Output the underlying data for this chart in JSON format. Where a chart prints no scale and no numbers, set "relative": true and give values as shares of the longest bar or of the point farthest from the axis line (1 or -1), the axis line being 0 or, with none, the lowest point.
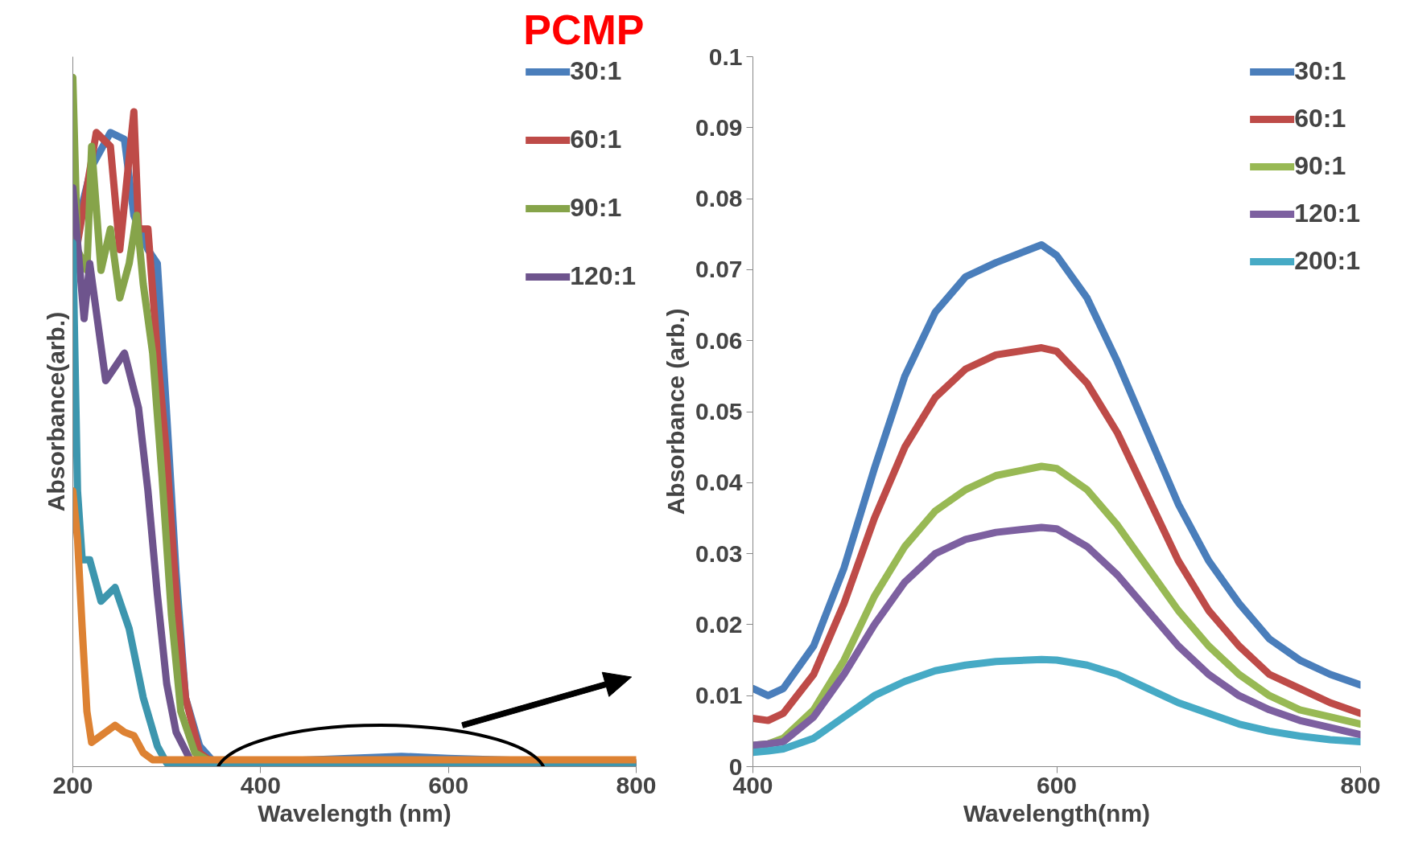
{
  "chart_data": [
    {
      "type": "line",
      "title": "PCMP",
      "xlabel": "Wavelength (nm)",
      "ylabel": "Absorbance(arb.)",
      "relative": true,
      "xlim": [
        200,
        800
      ],
      "xticks": [
        200,
        400,
        600,
        800
      ],
      "tick_labels": "x",
      "legend": "top right",
      "grid": false,
      "line_style": "solid",
      "marker": "none",
      "series": [
        {
          "name": "30:1",
          "color": "#4a7ebb",
          "x": [
            200,
            220,
            240,
            255,
            265,
            280,
            290,
            300,
            310,
            320,
            335,
            350,
            400,
            550,
            600,
            800
          ],
          "values": [
            0.76,
            0.87,
            0.92,
            0.91,
            0.8,
            0.75,
            0.73,
            0.51,
            0.28,
            0.1,
            0.03,
            0.007,
            0.007,
            0.015,
            0.012,
            0.004
          ]
        },
        {
          "name": "60:1",
          "color": "#be4b48",
          "x": [
            200,
            225,
            240,
            250,
            265,
            270,
            280,
            290,
            300,
            310,
            320,
            335,
            350,
            800
          ],
          "values": [
            0.72,
            0.92,
            0.9,
            0.75,
            0.95,
            0.78,
            0.78,
            0.6,
            0.45,
            0.25,
            0.1,
            0.02,
            0.005,
            0.006
          ]
        },
        {
          "name": "90:1",
          "color": "#86a44a",
          "x": [
            200,
            205,
            215,
            220,
            230,
            240,
            250,
            260,
            268,
            275,
            285,
            295,
            305,
            315,
            330,
            350,
            800
          ],
          "values": [
            1.0,
            0.75,
            0.72,
            0.9,
            0.72,
            0.78,
            0.68,
            0.73,
            0.8,
            0.7,
            0.6,
            0.42,
            0.22,
            0.08,
            0.02,
            0.005,
            0.005
          ]
        },
        {
          "name": "120:1",
          "color": "#6e548d",
          "x": [
            200,
            212,
            218,
            235,
            255,
            270,
            280,
            290,
            300,
            310,
            325,
            340,
            800
          ],
          "values": [
            0.84,
            0.65,
            0.73,
            0.56,
            0.6,
            0.52,
            0.4,
            0.25,
            0.12,
            0.05,
            0.01,
            0.003,
            0.003
          ]
        },
        {
          "color": "#3d96ae",
          "x": [
            200,
            205,
            210,
            218,
            230,
            245,
            260,
            275,
            290,
            300,
            320,
            800
          ],
          "values": [
            0.76,
            0.4,
            0.3,
            0.3,
            0.24,
            0.26,
            0.2,
            0.1,
            0.03,
            0.005,
            0.0,
            0.0
          ]
        },
        {
          "color": "#dd8233",
          "x": [
            200,
            205,
            210,
            215,
            220,
            235,
            245,
            255,
            265,
            275,
            285,
            800
          ],
          "values": [
            0.4,
            0.33,
            0.2,
            0.08,
            0.035,
            0.05,
            0.06,
            0.05,
            0.045,
            0.02,
            0.01,
            0.01
          ]
        }
      ]
    },
    {
      "type": "line",
      "xlabel": "Wavelength(nm)",
      "ylabel": "Absorbance (arb.)",
      "xlim": [
        400,
        800
      ],
      "xticks": [
        400,
        600,
        800
      ],
      "ylim": [
        0,
        0.1
      ],
      "yticks": [
        0,
        0.01,
        0.02,
        0.03,
        0.04,
        0.05,
        0.06,
        0.07,
        0.08,
        0.09,
        0.1
      ],
      "legend": "top right",
      "grid": false,
      "line_style": "solid",
      "marker": "none",
      "x": [
        400,
        410,
        420,
        440,
        460,
        480,
        500,
        520,
        540,
        560,
        590,
        600,
        620,
        640,
        660,
        680,
        700,
        720,
        740,
        760,
        780,
        800
      ],
      "series": [
        {
          "name": "30:1",
          "color": "#4a7ebb",
          "values": [
            0.011,
            0.01,
            0.011,
            0.017,
            0.028,
            0.042,
            0.055,
            0.064,
            0.069,
            0.071,
            0.0735,
            0.072,
            0.066,
            0.057,
            0.047,
            0.037,
            0.029,
            0.023,
            0.018,
            0.015,
            0.013,
            0.0115
          ]
        },
        {
          "name": "60:1",
          "color": "#be4b48",
          "values": [
            0.0068,
            0.0065,
            0.0075,
            0.013,
            0.023,
            0.035,
            0.045,
            0.052,
            0.056,
            0.058,
            0.059,
            0.0585,
            0.054,
            0.047,
            0.038,
            0.029,
            0.022,
            0.017,
            0.013,
            0.011,
            0.009,
            0.0075
          ]
        },
        {
          "name": "90:1",
          "color": "#98b954",
          "values": [
            0.003,
            0.0032,
            0.004,
            0.008,
            0.015,
            0.024,
            0.031,
            0.036,
            0.039,
            0.041,
            0.0423,
            0.042,
            0.039,
            0.034,
            0.028,
            0.022,
            0.017,
            0.013,
            0.01,
            0.008,
            0.007,
            0.006
          ]
        },
        {
          "name": "120:1",
          "color": "#7d60a0",
          "values": [
            0.003,
            0.0032,
            0.0035,
            0.007,
            0.013,
            0.02,
            0.026,
            0.03,
            0.032,
            0.033,
            0.0337,
            0.0335,
            0.031,
            0.027,
            0.022,
            0.017,
            0.013,
            0.01,
            0.008,
            0.0065,
            0.0055,
            0.0045
          ]
        },
        {
          "name": "200:1",
          "color": "#46aac5",
          "values": [
            0.002,
            0.0022,
            0.0025,
            0.004,
            0.007,
            0.01,
            0.012,
            0.0135,
            0.0143,
            0.0148,
            0.0151,
            0.015,
            0.0143,
            0.013,
            0.011,
            0.009,
            0.0075,
            0.006,
            0.005,
            0.0043,
            0.0038,
            0.0035
          ]
        }
      ]
    }
  ]
}
